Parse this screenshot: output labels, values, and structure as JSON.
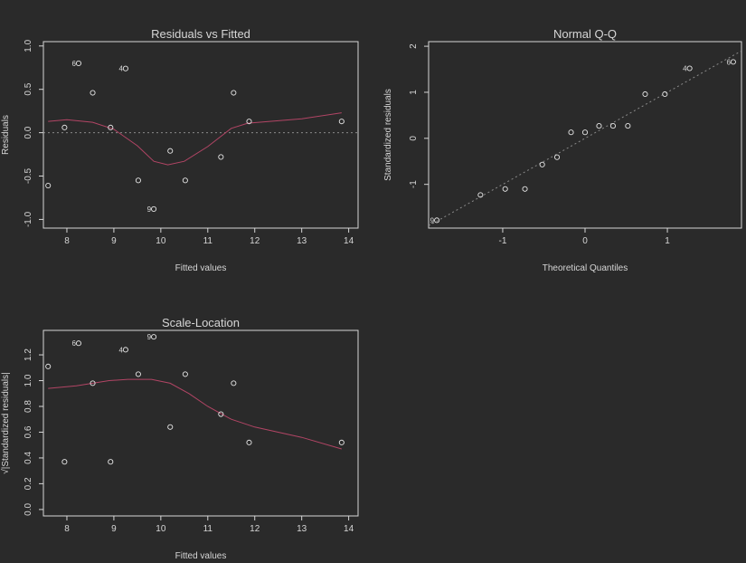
{
  "chart_data": [
    {
      "type": "scatter",
      "title": "Residuals vs Fitted",
      "xlabel": "Fitted values",
      "ylabel": "Residuals",
      "xlim": [
        7.5,
        14.2
      ],
      "ylim": [
        -1.1,
        1.05
      ],
      "x_ticks": [
        8,
        9,
        10,
        11,
        12,
        13,
        14
      ],
      "y_ticks": [
        -1.0,
        -0.5,
        0.0,
        0.5,
        1.0
      ],
      "x_tick_labels": [
        "8",
        "9",
        "10",
        "11",
        "12",
        "13",
        "14"
      ],
      "y_tick_labels": [
        "-1.0",
        "-0.5",
        "0.0",
        "0.5",
        "1.0"
      ],
      "reference_line_y": 0,
      "points": [
        {
          "x": 7.6,
          "y": -0.61
        },
        {
          "x": 7.95,
          "y": 0.06
        },
        {
          "x": 8.25,
          "y": 0.8,
          "label": "6"
        },
        {
          "x": 8.55,
          "y": 0.46
        },
        {
          "x": 8.93,
          "y": 0.06
        },
        {
          "x": 9.25,
          "y": 0.74,
          "label": "4"
        },
        {
          "x": 9.52,
          "y": -0.55
        },
        {
          "x": 9.85,
          "y": -0.88,
          "label": "9"
        },
        {
          "x": 10.2,
          "y": -0.21
        },
        {
          "x": 10.52,
          "y": -0.55
        },
        {
          "x": 11.28,
          "y": -0.28
        },
        {
          "x": 11.55,
          "y": 0.46
        },
        {
          "x": 11.88,
          "y": 0.13
        },
        {
          "x": 13.85,
          "y": 0.13
        }
      ],
      "smooth": [
        {
          "x": 7.6,
          "y": 0.13
        },
        {
          "x": 8.0,
          "y": 0.15
        },
        {
          "x": 8.55,
          "y": 0.12
        },
        {
          "x": 9.0,
          "y": 0.04
        },
        {
          "x": 9.5,
          "y": -0.15
        },
        {
          "x": 9.85,
          "y": -0.33
        },
        {
          "x": 10.15,
          "y": -0.37
        },
        {
          "x": 10.5,
          "y": -0.33
        },
        {
          "x": 11.0,
          "y": -0.16
        },
        {
          "x": 11.5,
          "y": 0.05
        },
        {
          "x": 11.85,
          "y": 0.11
        },
        {
          "x": 13.0,
          "y": 0.16
        },
        {
          "x": 13.85,
          "y": 0.23
        }
      ]
    },
    {
      "type": "scatter",
      "title": "Normal Q-Q",
      "xlabel": "Theoretical Quantiles",
      "ylabel": "Standardized residuals",
      "xlim": [
        -1.9,
        1.9
      ],
      "ylim": [
        -1.95,
        2.1
      ],
      "x_ticks": [
        -1,
        0,
        1
      ],
      "y_ticks": [
        -1,
        0,
        1,
        2
      ],
      "x_tick_labels": [
        "-1",
        "0",
        "1"
      ],
      "y_tick_labels": [
        "-1",
        "0",
        "1",
        "2"
      ],
      "reference_line": {
        "slope": 1.0,
        "intercept": 0.0
      },
      "points": [
        {
          "x": -1.8,
          "y": -1.78,
          "label": "9"
        },
        {
          "x": -1.27,
          "y": -1.23
        },
        {
          "x": -0.97,
          "y": -1.1
        },
        {
          "x": -0.73,
          "y": -1.1
        },
        {
          "x": -0.52,
          "y": -0.57
        },
        {
          "x": -0.34,
          "y": -0.41
        },
        {
          "x": -0.17,
          "y": 0.13
        },
        {
          "x": 0.0,
          "y": 0.13
        },
        {
          "x": 0.17,
          "y": 0.27
        },
        {
          "x": 0.34,
          "y": 0.27
        },
        {
          "x": 0.52,
          "y": 0.27
        },
        {
          "x": 0.73,
          "y": 0.96
        },
        {
          "x": 0.97,
          "y": 0.96
        },
        {
          "x": 1.27,
          "y": 1.52,
          "label": "4"
        },
        {
          "x": 1.8,
          "y": 1.66,
          "label": "6"
        }
      ]
    },
    {
      "type": "scatter",
      "title": "Scale-Location",
      "xlabel": "Fitted values",
      "ylabel": "√|Standardized residuals|",
      "xlim": [
        7.5,
        14.2
      ],
      "ylim": [
        -0.05,
        1.39
      ],
      "x_ticks": [
        8,
        9,
        10,
        11,
        12,
        13,
        14
      ],
      "y_ticks": [
        0.0,
        0.2,
        0.4,
        0.6,
        0.8,
        1.0,
        1.2
      ],
      "x_tick_labels": [
        "8",
        "9",
        "10",
        "11",
        "12",
        "13",
        "14"
      ],
      "y_tick_labels": [
        "0.0",
        "0.2",
        "0.4",
        "0.6",
        "0.8",
        "1.0",
        "1.2"
      ],
      "points": [
        {
          "x": 7.6,
          "y": 1.11
        },
        {
          "x": 7.95,
          "y": 0.37
        },
        {
          "x": 8.25,
          "y": 1.29,
          "label": "6"
        },
        {
          "x": 8.55,
          "y": 0.98
        },
        {
          "x": 8.93,
          "y": 0.37
        },
        {
          "x": 9.25,
          "y": 1.24,
          "label": "4"
        },
        {
          "x": 9.52,
          "y": 1.05
        },
        {
          "x": 9.85,
          "y": 1.34,
          "label": "9"
        },
        {
          "x": 10.2,
          "y": 0.64
        },
        {
          "x": 10.52,
          "y": 1.05
        },
        {
          "x": 11.28,
          "y": 0.74
        },
        {
          "x": 11.55,
          "y": 0.98
        },
        {
          "x": 11.88,
          "y": 0.52
        },
        {
          "x": 13.85,
          "y": 0.52
        }
      ],
      "smooth": [
        {
          "x": 7.6,
          "y": 0.94
        },
        {
          "x": 8.2,
          "y": 0.96
        },
        {
          "x": 8.9,
          "y": 1.0
        },
        {
          "x": 9.3,
          "y": 1.01
        },
        {
          "x": 9.8,
          "y": 1.01
        },
        {
          "x": 10.2,
          "y": 0.98
        },
        {
          "x": 10.6,
          "y": 0.9
        },
        {
          "x": 11.0,
          "y": 0.8
        },
        {
          "x": 11.5,
          "y": 0.7
        },
        {
          "x": 12.0,
          "y": 0.64
        },
        {
          "x": 13.0,
          "y": 0.56
        },
        {
          "x": 13.85,
          "y": 0.47
        }
      ]
    }
  ]
}
